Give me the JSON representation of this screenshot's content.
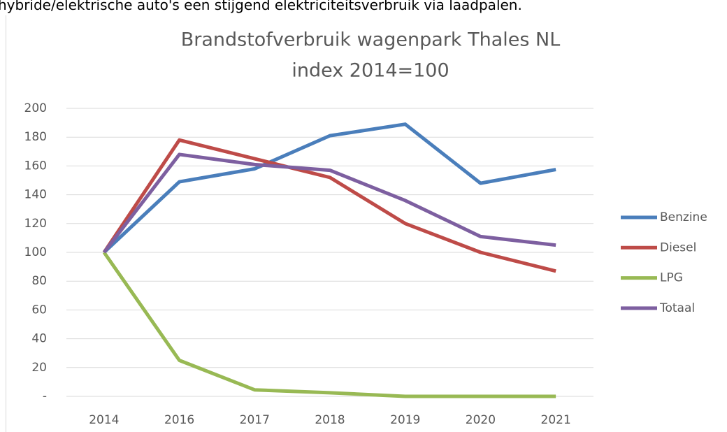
{
  "caption": "hybride/elektrische auto's een stijgend elektriciteitsverbruik via laadpalen.",
  "chart_data": {
    "type": "line",
    "title": [
      "Brandstofverbruik wagenpark Thales NL",
      "index 2014=100"
    ],
    "categories": [
      "2014",
      "2016",
      "2017",
      "2018",
      "2019",
      "2020",
      "2021"
    ],
    "series": [
      {
        "name": "Benzine",
        "color": "#4a7ebb",
        "values": [
          100,
          149,
          158,
          181,
          189,
          148,
          157.5
        ]
      },
      {
        "name": "Diesel",
        "color": "#be4b48",
        "values": [
          100,
          178,
          165,
          152,
          120,
          100,
          87
        ]
      },
      {
        "name": "LPG",
        "color": "#98b954",
        "values": [
          100,
          25,
          4.5,
          2.5,
          0,
          0,
          0
        ]
      },
      {
        "name": "Totaal",
        "color": "#7d5fa0",
        "values": [
          100,
          168,
          161,
          157,
          136,
          111,
          105
        ]
      }
    ],
    "ylim": [
      0,
      200
    ],
    "yticks": [
      {
        "value": 0,
        "label": "-"
      },
      20,
      40,
      60,
      80,
      100,
      120,
      140,
      160,
      180,
      200
    ],
    "grid": true,
    "legend": "right"
  }
}
